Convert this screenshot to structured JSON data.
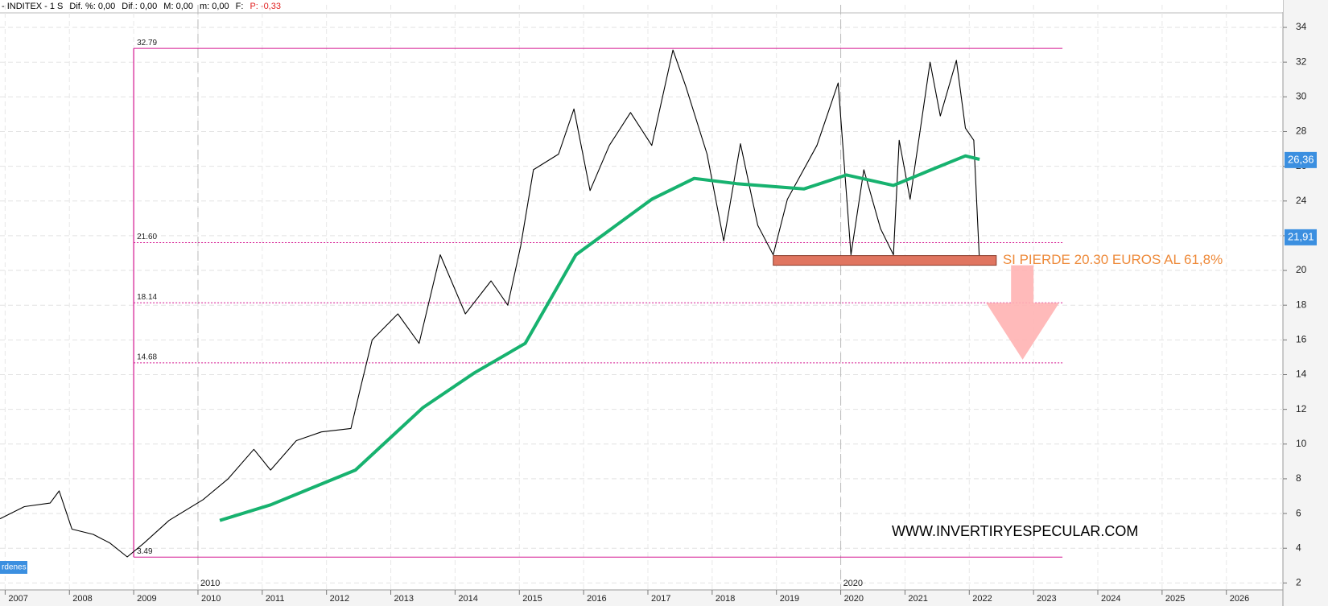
{
  "header": {
    "symbol": "- INDITEX - 1 S",
    "fields": [
      "Dif. %: 0,00",
      "Dif.: 0,00",
      "M: 0,00",
      "m: 0,00",
      "F:"
    ],
    "change": "P: -0,33"
  },
  "chart_data": {
    "type": "line",
    "series": [
      {
        "color": "#000000",
        "x": [
          2006.92,
          2007.3,
          2007.7,
          2007.84,
          2008.04,
          2008.37,
          2008.63,
          2008.9,
          2009.16,
          2009.55,
          2010.08,
          2010.47,
          2010.87,
          2011.13,
          2011.53,
          2011.92,
          2012.38,
          2012.52,
          2012.71,
          2013.11,
          2013.44,
          2013.77,
          2014.16,
          2014.56,
          2014.82,
          2015.02,
          2015.22,
          2015.61,
          2015.85,
          2016.1,
          2016.4,
          2016.73,
          2017.06,
          2017.39,
          2017.59,
          2017.92,
          2018.18,
          2018.44,
          2018.71,
          2018.95,
          2019.17,
          2019.63,
          2019.96,
          2020.16,
          2020.36,
          2020.62,
          2020.82,
          2020.91,
          2021.08,
          2021.39,
          2021.55,
          2021.8,
          2021.94,
          2022.07,
          2022.16
        ],
        "values": [
          5.7,
          6.4,
          6.6,
          7.3,
          5.1,
          4.8,
          4.3,
          3.5,
          4.3,
          5.6,
          6.8,
          8.0,
          9.7,
          8.5,
          10.2,
          10.7,
          10.9,
          13.1,
          16.0,
          17.5,
          15.8,
          20.9,
          17.5,
          19.4,
          18.0,
          21.4,
          25.8,
          26.7,
          29.3,
          24.6,
          27.2,
          29.1,
          27.2,
          32.7,
          30.6,
          26.7,
          21.7,
          27.3,
          22.6,
          20.9,
          24.1,
          27.2,
          30.8,
          20.9,
          25.8,
          22.4,
          20.9,
          27.5,
          24.1,
          32.0,
          28.9,
          32.1,
          28.2,
          27.5,
          20.4
        ]
      },
      {
        "color": "#17b26f",
        "x": [
          2010.34,
          2011.13,
          2012.45,
          2013.5,
          2014.3,
          2015.09,
          2015.88,
          2017.06,
          2017.72,
          2018.38,
          2019.43,
          2020.09,
          2020.82,
          2021.41,
          2021.94,
          2022.16
        ],
        "values": [
          5.6,
          6.5,
          8.5,
          12.1,
          14.1,
          15.8,
          20.9,
          24.1,
          25.3,
          25.0,
          24.7,
          25.5,
          24.9,
          25.8,
          26.6,
          26.4
        ]
      }
    ],
    "xlim": [
      2006.92,
      2026.88
    ],
    "xticks": [
      2007,
      2008,
      2009,
      2010,
      2011,
      2012,
      2013,
      2014,
      2015,
      2016,
      2017,
      2018,
      2019,
      2020,
      2021,
      2022,
      2023,
      2024,
      2025,
      2026
    ],
    "ylim": [
      1.6,
      35.3
    ],
    "yticks": [
      2,
      4,
      6,
      8,
      10,
      12,
      14,
      16,
      18,
      20,
      22,
      24,
      26,
      28,
      30,
      32,
      34
    ],
    "grid": true,
    "period_markers": [
      2010,
      2020
    ],
    "fib_start": 2009.0,
    "fib_end": 2023.45,
    "fib_levels": [
      {
        "value": 32.79,
        "label": "32.79"
      },
      {
        "value": 21.6,
        "label": "21.60"
      },
      {
        "value": 18.14,
        "label": "18.14"
      },
      {
        "value": 14.68,
        "label": "14.68"
      },
      {
        "value": 3.49,
        "label": "3.49"
      }
    ],
    "price_tags": [
      {
        "value": 26.36,
        "label": "26,36"
      },
      {
        "value": 21.91,
        "label": "21,91"
      }
    ],
    "support": {
      "value": 20.3,
      "from": 2018.95,
      "to": 2022.42
    },
    "annotation": "SI PIERDE 20.30 EUROS AL 61,8%",
    "watermark": "WWW.INVERTIRYESPECULAR.COM",
    "tab_label": "rdenes"
  }
}
